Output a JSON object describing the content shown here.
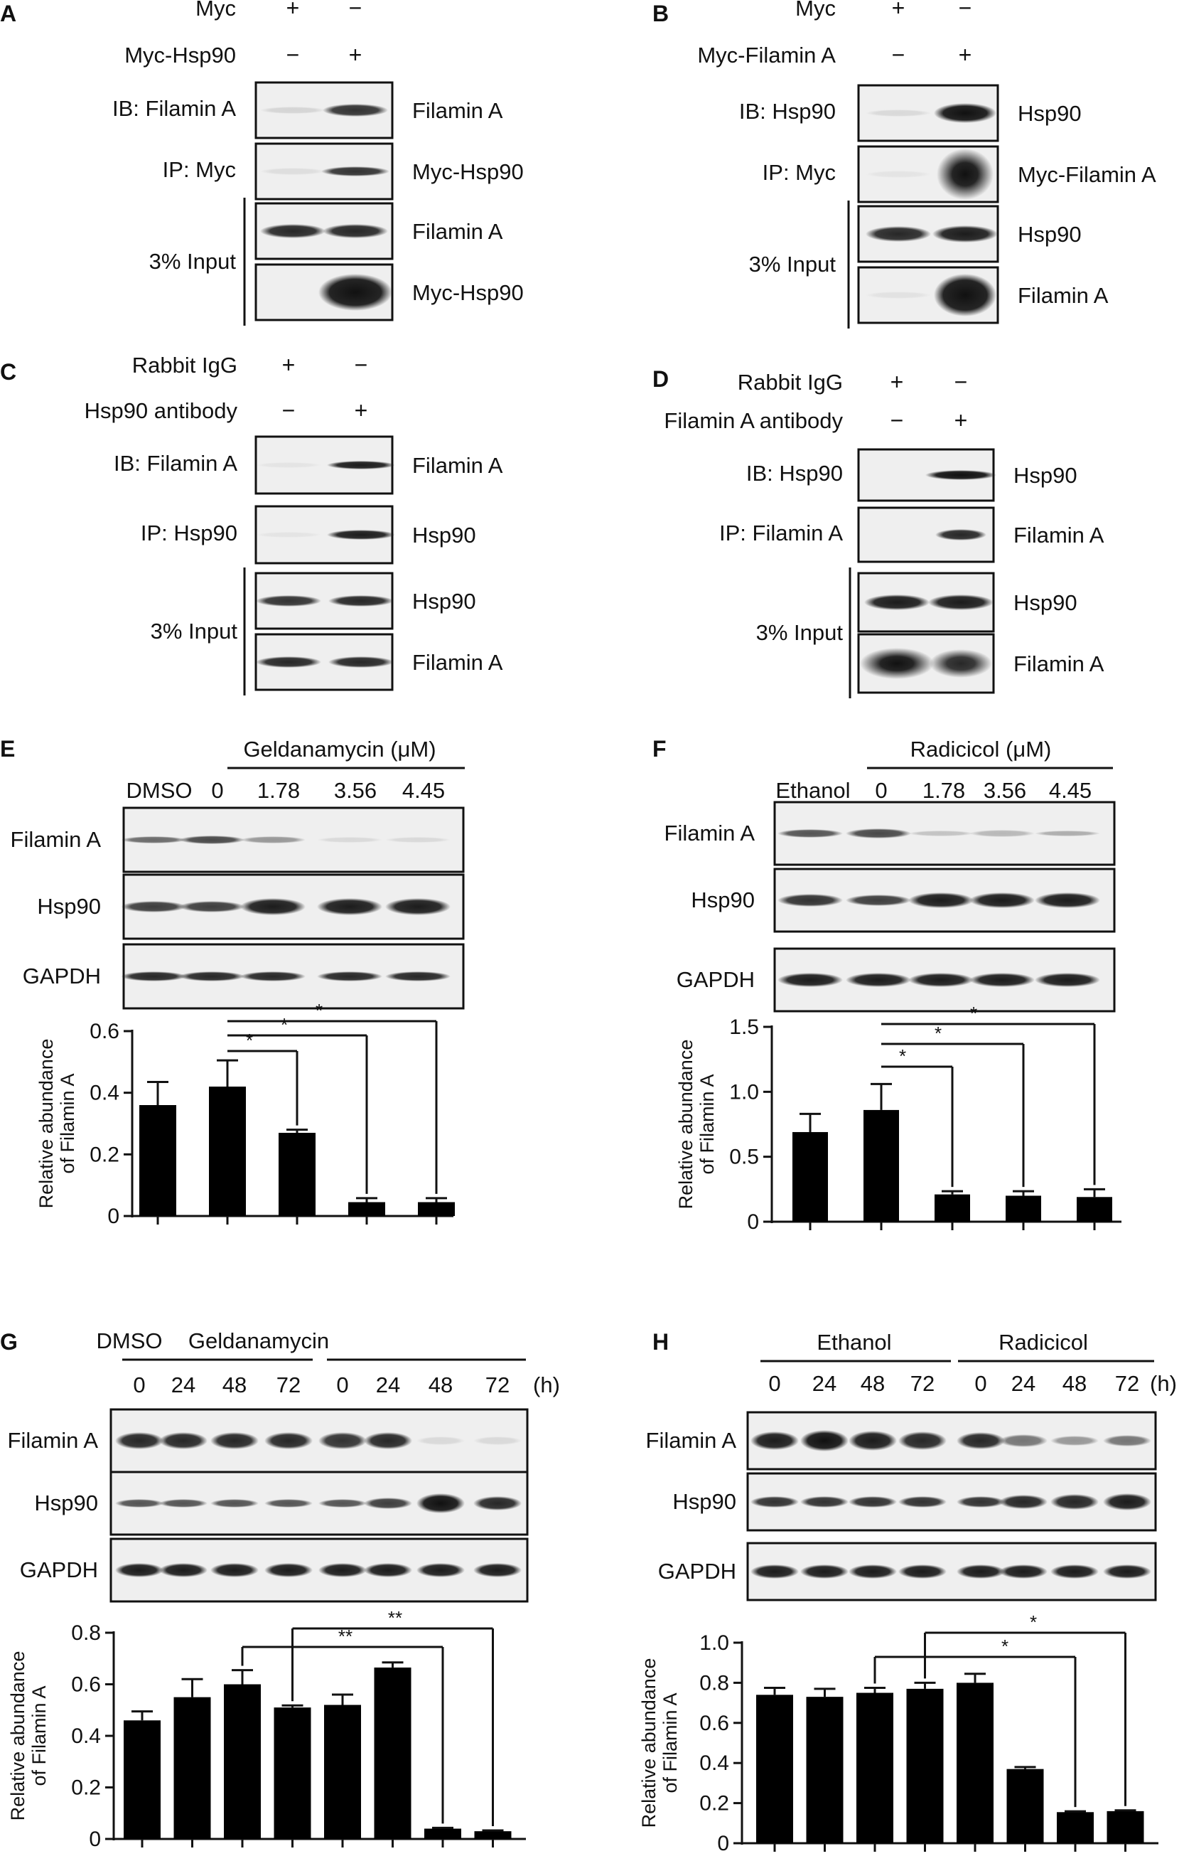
{
  "figure": {
    "panels": {
      "A": {
        "letter": "A",
        "cond_rows": [
          {
            "label": "Myc",
            "signs": [
              "+",
              "−"
            ]
          },
          {
            "label": "Myc-Hsp90",
            "signs": [
              "−",
              "+"
            ]
          }
        ],
        "blots": [
          {
            "row_label": "IB: Filamin A",
            "band": "Filamin A"
          },
          {
            "row_label": "IP: Myc",
            "band": "Myc-Hsp90"
          },
          {
            "band": "Filamin A"
          },
          {
            "band": "Myc-Hsp90"
          }
        ],
        "input_label": "3% Input"
      },
      "B": {
        "letter": "B",
        "cond_rows": [
          {
            "label": "Myc",
            "signs": [
              "+",
              "−"
            ]
          },
          {
            "label": "Myc-Filamin A",
            "signs": [
              "−",
              "+"
            ]
          }
        ],
        "blots": [
          {
            "row_label": "IB: Hsp90",
            "band": "Hsp90"
          },
          {
            "row_label": "IP: Myc",
            "band": "Myc-Filamin A"
          },
          {
            "band": "Hsp90"
          },
          {
            "band": "Filamin A"
          }
        ],
        "input_label": "3% Input"
      },
      "C": {
        "letter": "C",
        "cond_rows": [
          {
            "label": "Rabbit IgG",
            "signs": [
              "+",
              "−"
            ]
          },
          {
            "label": "Hsp90 antibody",
            "signs": [
              "−",
              "+"
            ]
          }
        ],
        "blots": [
          {
            "row_label": "IB: Filamin A",
            "band": "Filamin A"
          },
          {
            "row_label": "IP: Hsp90",
            "band": "Hsp90"
          },
          {
            "band": "Hsp90"
          },
          {
            "band": "Filamin A"
          }
        ],
        "input_label": "3% Input"
      },
      "D": {
        "letter": "D",
        "cond_rows": [
          {
            "label": "Rabbit IgG",
            "signs": [
              "+",
              "−"
            ]
          },
          {
            "label": "Filamin A antibody",
            "signs": [
              "−",
              "+"
            ]
          }
        ],
        "blots": [
          {
            "row_label": "IB: Hsp90",
            "band": "Hsp90"
          },
          {
            "row_label": "IP: Filamin A",
            "band": "Filamin A"
          },
          {
            "band": "Hsp90"
          },
          {
            "band": "Filamin A"
          }
        ],
        "input_label": "3% Input"
      },
      "E": {
        "letter": "E",
        "treatment": "Geldanamycin (μM)",
        "lanes": [
          "DMSO",
          "0",
          "1.78",
          "3.56",
          "4.45"
        ],
        "blot_labels": [
          "Filamin A",
          "Hsp90",
          "GAPDH"
        ],
        "significance": [
          "*",
          "*",
          "*"
        ]
      },
      "F": {
        "letter": "F",
        "treatment": "Radicicol (μM)",
        "lanes": [
          "Ethanol",
          "0",
          "1.78",
          "3.56",
          "4.45"
        ],
        "blot_labels": [
          "Filamin A",
          "Hsp90",
          "GAPDH"
        ],
        "significance": [
          "*",
          "*",
          "*"
        ]
      },
      "G": {
        "letter": "G",
        "groups": [
          "DMSO",
          "Geldanamycin"
        ],
        "lanes": [
          "0",
          "24",
          "48",
          "72",
          "0",
          "24",
          "48",
          "72"
        ],
        "unit": "(h)",
        "blot_labels": [
          "Filamin A",
          "Hsp90",
          "GAPDH"
        ],
        "significance": [
          "**",
          "**"
        ]
      },
      "H": {
        "letter": "H",
        "groups": [
          "Ethanol",
          "Radicicol"
        ],
        "lanes": [
          "0",
          "24",
          "48",
          "72",
          "0",
          "24",
          "48",
          "72"
        ],
        "unit": "(h)",
        "blot_labels": [
          "Filamin A",
          "Hsp90",
          "GAPDH"
        ],
        "significance": [
          "*",
          "*"
        ]
      }
    }
  },
  "chart_data": [
    {
      "panel": "E",
      "type": "bar",
      "ylabel": "Relative abundance of Filamin A",
      "ylabel_lines": [
        "Relative abundance",
        "of Filamin A"
      ],
      "ylim": [
        0,
        0.6
      ],
      "yticks": [
        0,
        0.2,
        0.4,
        0.6
      ],
      "ytick_labels": [
        "0",
        "0.2",
        "0.4",
        "0.6"
      ],
      "values": [
        0.36,
        0.42,
        0.27,
        0.045,
        0.045
      ],
      "errors": [
        0.075,
        0.085,
        0.01,
        0.013,
        0.013
      ]
    },
    {
      "panel": "F",
      "type": "bar",
      "ylabel": "Relative abundance of Filamin A",
      "ylabel_lines": [
        "Relative abundance",
        "of Filamin A"
      ],
      "ylim": [
        0,
        1.5
      ],
      "yticks": [
        0,
        0.5,
        1.0,
        1.5
      ],
      "ytick_labels": [
        "0",
        "0.5",
        "1.0",
        "1.5"
      ],
      "values": [
        0.69,
        0.86,
        0.21,
        0.2,
        0.19
      ],
      "errors": [
        0.14,
        0.2,
        0.025,
        0.035,
        0.06
      ]
    },
    {
      "panel": "G",
      "type": "bar",
      "ylabel": "Relative abundance of Filamin A",
      "ylabel_lines": [
        "Relative abundance",
        "of Filamin A"
      ],
      "ylim": [
        0,
        0.8
      ],
      "yticks": [
        0,
        0.2,
        0.4,
        0.6,
        0.8
      ],
      "ytick_labels": [
        "0",
        "0.2",
        "0.4",
        "0.6",
        "0.8"
      ],
      "values": [
        0.46,
        0.55,
        0.6,
        0.51,
        0.52,
        0.665,
        0.04,
        0.03
      ],
      "errors": [
        0.035,
        0.07,
        0.055,
        0.008,
        0.04,
        0.02,
        0.003,
        0.003
      ]
    },
    {
      "panel": "H",
      "type": "bar",
      "ylabel": "Relative abundance of Filamin A",
      "ylabel_lines": [
        "Relative abundance",
        "of Filamin A"
      ],
      "ylim": [
        0,
        1.0
      ],
      "yticks": [
        0,
        0.2,
        0.4,
        0.6,
        0.8,
        1.0
      ],
      "ytick_labels": [
        "0",
        "0.2",
        "0.4",
        "0.6",
        "0.8",
        "1.0"
      ],
      "values": [
        0.74,
        0.73,
        0.75,
        0.77,
        0.8,
        0.37,
        0.155,
        0.16
      ],
      "errors": [
        0.035,
        0.04,
        0.025,
        0.03,
        0.045,
        0.01,
        0.004,
        0.004
      ]
    }
  ]
}
